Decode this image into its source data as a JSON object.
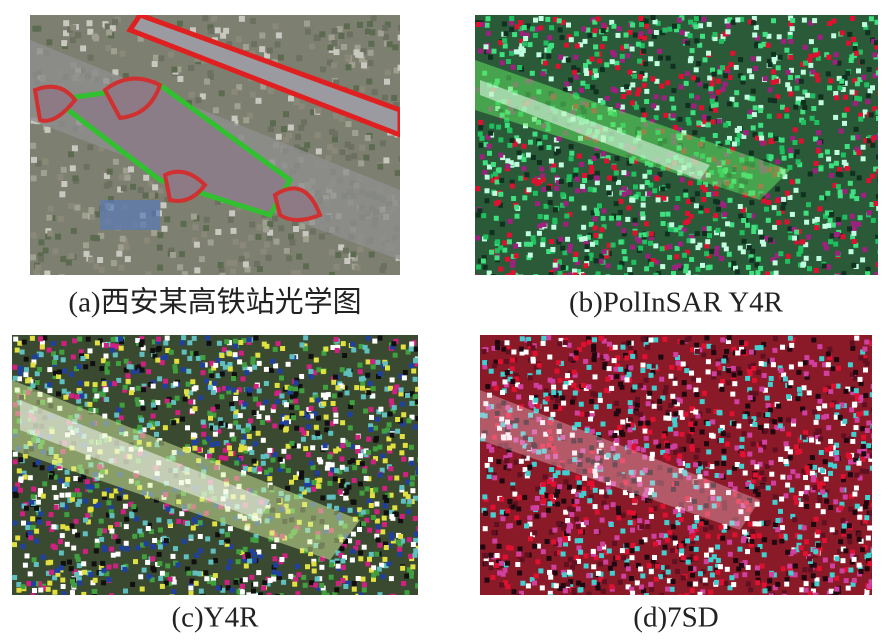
{
  "panels": [
    {
      "caption": "(a)西安某高铁站光学图"
    },
    {
      "caption": "(b)PolInSAR Y4R"
    },
    {
      "caption": "(c)Y4R"
    },
    {
      "caption": "(d)7SD"
    }
  ]
}
